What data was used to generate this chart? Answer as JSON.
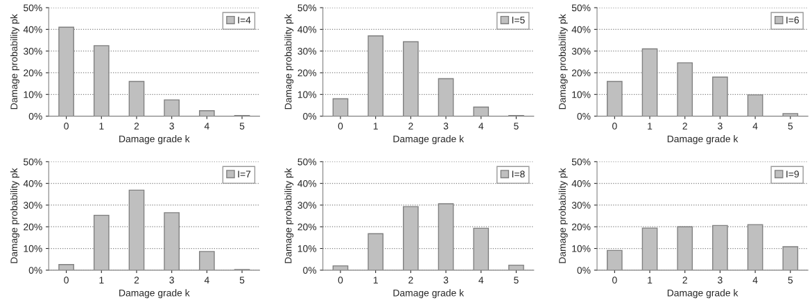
{
  "chart_data": [
    {
      "type": "bar",
      "xlabel": "Damage grade k",
      "ylabel": "Damage probability pk",
      "categories": [
        "0",
        "1",
        "2",
        "3",
        "4",
        "5"
      ],
      "series": [
        {
          "name": "I=4",
          "color": "#bfbfbf",
          "values": [
            41,
            32.5,
            16,
            7.5,
            2.5,
            0.3
          ]
        }
      ],
      "ylim": [
        0,
        50
      ],
      "yticks": [
        {
          "value": 0,
          "label": "0%"
        },
        {
          "value": 10,
          "label": "10%"
        },
        {
          "value": 20,
          "label": "20%"
        },
        {
          "value": 30,
          "label": "30%"
        },
        {
          "value": 40,
          "label": "40%"
        },
        {
          "value": 50,
          "label": "50%"
        }
      ],
      "grid": "y",
      "legend": "top right"
    },
    {
      "type": "bar",
      "xlabel": "Damage grade k",
      "ylabel": "Damage probability pk",
      "categories": [
        "0",
        "1",
        "2",
        "3",
        "4",
        "5"
      ],
      "series": [
        {
          "name": "I=5",
          "color": "#bfbfbf",
          "values": [
            8,
            37,
            34.3,
            17.3,
            4.2,
            0.3
          ]
        }
      ],
      "ylim": [
        0,
        50
      ],
      "yticks": [
        {
          "value": 0,
          "label": "0%"
        },
        {
          "value": 10,
          "label": "10%"
        },
        {
          "value": 20,
          "label": "20%"
        },
        {
          "value": 30,
          "label": "30%"
        },
        {
          "value": 40,
          "label": "40%"
        },
        {
          "value": 50,
          "label": "50%"
        }
      ],
      "grid": "y",
      "legend": "top right"
    },
    {
      "type": "bar",
      "xlabel": "Damage grade k",
      "ylabel": "Damage probability pk",
      "categories": [
        "0",
        "1",
        "2",
        "3",
        "4",
        "5"
      ],
      "series": [
        {
          "name": "I=6",
          "color": "#bfbfbf",
          "values": [
            16,
            31,
            24.6,
            18,
            9.8,
            1.2
          ]
        }
      ],
      "ylim": [
        0,
        50
      ],
      "yticks": [
        {
          "value": 0,
          "label": "0%"
        },
        {
          "value": 10,
          "label": "10%"
        },
        {
          "value": 20,
          "label": "20%"
        },
        {
          "value": 30,
          "label": "30%"
        },
        {
          "value": 40,
          "label": "40%"
        },
        {
          "value": 50,
          "label": "50%"
        }
      ],
      "grid": "y",
      "legend": "top right"
    },
    {
      "type": "bar",
      "xlabel": "Damage grade k",
      "ylabel": "Damage probability pk",
      "categories": [
        "0",
        "1",
        "2",
        "3",
        "4",
        "5"
      ],
      "series": [
        {
          "name": "I=7",
          "color": "#bfbfbf",
          "values": [
            2.6,
            25.3,
            36.9,
            26.5,
            8.6,
            0.3
          ]
        }
      ],
      "ylim": [
        0,
        50
      ],
      "yticks": [
        {
          "value": 0,
          "label": "0%"
        },
        {
          "value": 10,
          "label": "10%"
        },
        {
          "value": 20,
          "label": "20%"
        },
        {
          "value": 30,
          "label": "30%"
        },
        {
          "value": 40,
          "label": "40%"
        },
        {
          "value": 50,
          "label": "50%"
        }
      ],
      "grid": "y",
      "legend": "top right"
    },
    {
      "type": "bar",
      "xlabel": "Damage grade k",
      "ylabel": "Damage probability pk",
      "categories": [
        "0",
        "1",
        "2",
        "3",
        "4",
        "5"
      ],
      "series": [
        {
          "name": "I=8",
          "color": "#bfbfbf",
          "values": [
            2,
            16.8,
            29.3,
            30.6,
            19.3,
            2.3
          ]
        }
      ],
      "ylim": [
        0,
        50
      ],
      "yticks": [
        {
          "value": 0,
          "label": "0%"
        },
        {
          "value": 10,
          "label": "10%"
        },
        {
          "value": 20,
          "label": "20%"
        },
        {
          "value": 30,
          "label": "30%"
        },
        {
          "value": 40,
          "label": "40%"
        },
        {
          "value": 50,
          "label": "50%"
        }
      ],
      "grid": "y",
      "legend": "top right"
    },
    {
      "type": "bar",
      "xlabel": "Damage grade k",
      "ylabel": "Damage probability pk",
      "categories": [
        "0",
        "1",
        "2",
        "3",
        "4",
        "5"
      ],
      "series": [
        {
          "name": "I=9",
          "color": "#bfbfbf",
          "values": [
            9.1,
            19.4,
            20,
            20.6,
            21,
            10.8
          ]
        }
      ],
      "ylim": [
        0,
        50
      ],
      "yticks": [
        {
          "value": 0,
          "label": "0%"
        },
        {
          "value": 10,
          "label": "10%"
        },
        {
          "value": 20,
          "label": "20%"
        },
        {
          "value": 30,
          "label": "30%"
        },
        {
          "value": 40,
          "label": "40%"
        },
        {
          "value": 50,
          "label": "50%"
        }
      ],
      "grid": "y",
      "legend": "top right"
    }
  ]
}
